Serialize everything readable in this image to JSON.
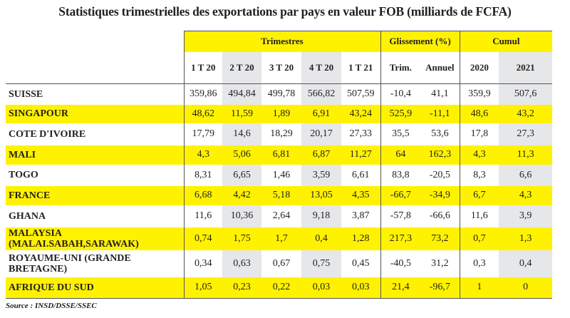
{
  "title": "Statistiques trimestrielles des exportations par pays en valeur FOB (milliards de FCFA)",
  "groups": {
    "trimestres": "Trimestres",
    "glissement": "Glissement (%)",
    "cumul": "Cumul"
  },
  "columns": [
    "1 T 20",
    "2 T 20",
    "3 T 20",
    "4 T 20",
    "1 T 21",
    "Trim.",
    "Annuel",
    "2020",
    "2021"
  ],
  "rows": [
    {
      "country": "SUISSE",
      "values": [
        "359,86",
        "494,84",
        "499,78",
        "566,82",
        "507,59",
        "-10,4",
        "41,1",
        "359,9",
        "507,6"
      ]
    },
    {
      "country": "SINGAPOUR",
      "values": [
        "48,62",
        "11,59",
        "1,89",
        "6,91",
        "43,24",
        "525,9",
        "-11,1",
        "48,6",
        "43,2"
      ]
    },
    {
      "country": "COTE D'IVOIRE",
      "values": [
        "17,79",
        "14,6",
        "18,29",
        "20,17",
        "27,33",
        "35,5",
        "53,6",
        "17,8",
        "27,3"
      ]
    },
    {
      "country": "MALI",
      "values": [
        "4,3",
        "5,06",
        "6,81",
        "6,87",
        "11,27",
        "64",
        "162,3",
        "4,3",
        "11,3"
      ]
    },
    {
      "country": "TOGO",
      "values": [
        "8,31",
        "6,65",
        "1,46",
        "3,59",
        "6,61",
        "83,8",
        "-20,5",
        "8,3",
        "6,6"
      ]
    },
    {
      "country": "FRANCE",
      "values": [
        "6,68",
        "4,42",
        "5,18",
        "13,05",
        "4,35",
        "-66,7",
        "-34,9",
        "6,7",
        "4,3"
      ]
    },
    {
      "country": "GHANA",
      "values": [
        "11,6",
        "10,36",
        "2,64",
        "9,18",
        "3,87",
        "-57,8",
        "-66,6",
        "11,6",
        "3,9"
      ]
    },
    {
      "country": "MALAYSIA (MALAI.SABAH,SARAWAK)",
      "values": [
        "0,74",
        "1,75",
        "1,7",
        "0,4",
        "1,28",
        "217,3",
        "73,2",
        "0,7",
        "1,3"
      ]
    },
    {
      "country": "ROYAUME-UNI (GRANDE BRETAGNE)",
      "values": [
        "0,34",
        "0,63",
        "0,67",
        "0,75",
        "0,45",
        "-40,5",
        "31,2",
        "0,3",
        "0,4"
      ]
    },
    {
      "country": "AFRIQUE DU SUD",
      "values": [
        "1,05",
        "0,23",
        "0,22",
        "0,03",
        "0,03",
        "21,4",
        "-96,7",
        "1",
        "0"
      ]
    }
  ],
  "source": "Source : INSD/DSSE/SSEC",
  "colors": {
    "highlight": "#fff200",
    "shade": "#e6e7e8"
  }
}
